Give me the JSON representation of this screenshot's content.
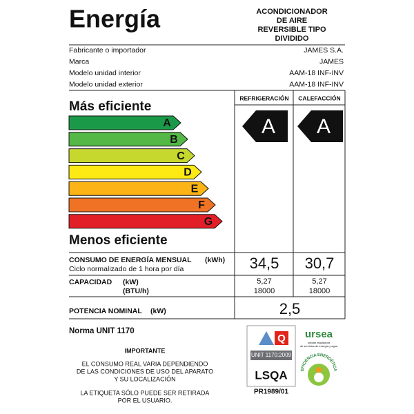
{
  "header": {
    "title": "Energía",
    "product": [
      "ACONDICIONADOR",
      "DE AIRE",
      "REVERSIBLE TIPO",
      "DIVIDIDO"
    ]
  },
  "info": [
    {
      "label": "Fabricante o importador",
      "value": "JAMES S.A."
    },
    {
      "label": "Marca",
      "value": "JAMES"
    },
    {
      "label": "Modelo unidad interior",
      "value": "AAM-18 INF-INV"
    },
    {
      "label": "Modelo unidad exterior",
      "value": "AAM-18 INF-INV"
    }
  ],
  "scale": {
    "top_label": "Más eficiente",
    "bottom_label": "Menos eficiente",
    "classes": [
      {
        "letter": "A",
        "color": "#1a9a48"
      },
      {
        "letter": "B",
        "color": "#54b847"
      },
      {
        "letter": "C",
        "color": "#c6d72e"
      },
      {
        "letter": "D",
        "color": "#fdea14"
      },
      {
        "letter": "E",
        "color": "#fbb316"
      },
      {
        "letter": "F",
        "color": "#f07224"
      },
      {
        "letter": "G",
        "color": "#e21f26"
      }
    ]
  },
  "ratings": [
    {
      "header": "REFRIGERACIÓN",
      "class": "A"
    },
    {
      "header": "CALEFACCIÓN",
      "class": "A"
    }
  ],
  "consumption": {
    "label": "CONSUMO DE ENERGÍA MENSUAL",
    "unit": "(kWh)",
    "sublabel": "Ciclo normalizado de 1 hora por día",
    "values": [
      "34,5",
      "30,7"
    ]
  },
  "capacity": {
    "label": "CAPACIDAD",
    "unit_kw": "(kW)",
    "unit_btu": "(BTU/h)",
    "kw": [
      "5,27",
      "5,27"
    ],
    "btu": [
      "18000",
      "18000"
    ]
  },
  "power": {
    "label": "POTENCIA NOMINAL",
    "unit": "(kW)",
    "value": "2,5"
  },
  "norma": "Norma UNIT 1170",
  "important": {
    "title": "IMPORTANTE",
    "paragraph1": [
      "EL CONSUMO REAL VARIA DEPENDIENDO",
      "DE LAS CONDICIONES DE USO DEL APARATO",
      "Y SU LOCALIZACIÓN"
    ],
    "paragraph2": [
      "LA ETIQUETA SÓLO PUEDE SER RETIRADA",
      "POR EL USUARIO."
    ]
  },
  "logos": {
    "unit": "UNIT 1170:2009",
    "lsqa": "LSQA",
    "certificate": "PR1989/01",
    "ursea": "ursea",
    "ursea_sub": [
      "unidad reguladora",
      "de servicios de energía y agua"
    ],
    "efficiency": "EFICIENCIA ENERGÉTICA"
  }
}
